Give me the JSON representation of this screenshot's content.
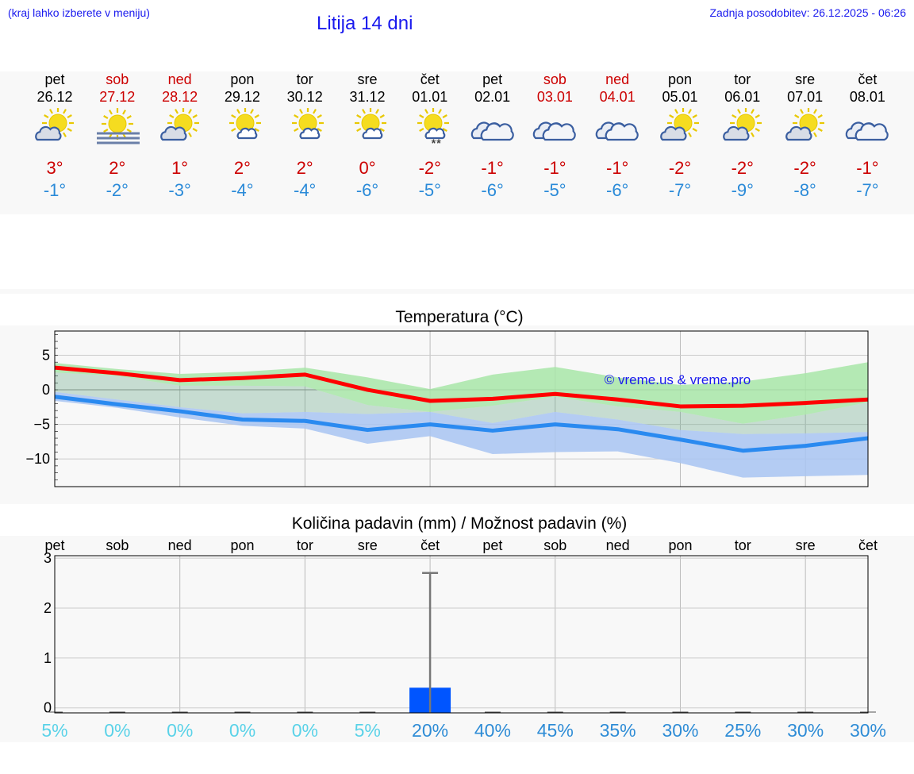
{
  "header": {
    "location_hint": "(kraj lahko izberete v meniju)",
    "title": "Litija 14 dni",
    "updated": "Zadnja posodobitev: 26.12.2025 - 06:26"
  },
  "days": [
    {
      "name": "pet",
      "date": "26.12",
      "weekend": false,
      "icon": "sun-cloud-icon",
      "max": "3°",
      "min": "-1°"
    },
    {
      "name": "sob",
      "date": "27.12",
      "weekend": true,
      "icon": "sun-fog-icon",
      "max": "2°",
      "min": "-2°"
    },
    {
      "name": "ned",
      "date": "28.12",
      "weekend": true,
      "icon": "sun-cloud-icon",
      "max": "1°",
      "min": "-3°"
    },
    {
      "name": "pon",
      "date": "29.12",
      "weekend": false,
      "icon": "sun-small-cloud-icon",
      "max": "2°",
      "min": "-4°"
    },
    {
      "name": "tor",
      "date": "30.12",
      "weekend": false,
      "icon": "sun-small-cloud-icon",
      "max": "2°",
      "min": "-4°"
    },
    {
      "name": "sre",
      "date": "31.12",
      "weekend": false,
      "icon": "sun-small-cloud-icon",
      "max": "0°",
      "min": "-6°"
    },
    {
      "name": "čet",
      "date": "01.01",
      "weekend": false,
      "icon": "sun-snow-icon",
      "max": "-2°",
      "min": "-5°"
    },
    {
      "name": "pet",
      "date": "02.01",
      "weekend": false,
      "icon": "cloud-icon",
      "max": "-1°",
      "min": "-6°"
    },
    {
      "name": "sob",
      "date": "03.01",
      "weekend": true,
      "icon": "cloud-icon",
      "max": "-1°",
      "min": "-5°"
    },
    {
      "name": "ned",
      "date": "04.01",
      "weekend": true,
      "icon": "cloud-icon",
      "max": "-1°",
      "min": "-6°"
    },
    {
      "name": "pon",
      "date": "05.01",
      "weekend": false,
      "icon": "sun-cloud-icon",
      "max": "-2°",
      "min": "-7°"
    },
    {
      "name": "tor",
      "date": "06.01",
      "weekend": false,
      "icon": "sun-cloud-icon",
      "max": "-2°",
      "min": "-9°"
    },
    {
      "name": "sre",
      "date": "07.01",
      "weekend": false,
      "icon": "sun-cloud-icon",
      "max": "-2°",
      "min": "-8°"
    },
    {
      "name": "čet",
      "date": "08.01",
      "weekend": false,
      "icon": "cloud-icon",
      "max": "-1°",
      "min": "-7°"
    }
  ],
  "snow_marker": "**",
  "chart_data": [
    {
      "type": "line",
      "title": "Temperatura (°C)",
      "x": [
        0,
        1,
        2,
        3,
        4,
        5,
        6,
        7,
        8,
        9,
        10,
        11,
        12,
        13
      ],
      "ylim": [
        -14,
        8.5
      ],
      "yticks": [
        5,
        0,
        -5,
        -10
      ],
      "ytick_labels": [
        "5",
        "0",
        "−5",
        "−10"
      ],
      "grid": true,
      "watermark": "© vreme.us & vreme.pro",
      "series": [
        {
          "name": "max",
          "color": "#ff0000",
          "values": [
            3.2,
            2.4,
            1.4,
            1.7,
            2.2,
            0,
            -1.6,
            -1.3,
            -0.6,
            -1.4,
            -2.4,
            -2.3,
            -1.9,
            -1.4
          ]
        },
        {
          "name": "min",
          "color": "#2a8af0",
          "values": [
            -1,
            -2.1,
            -3.1,
            -4.3,
            -4.5,
            -5.8,
            -5,
            -5.9,
            -5,
            -5.7,
            -7.2,
            -8.8,
            -8.1,
            -7
          ]
        },
        {
          "name": "max_range_high",
          "color": "#a8e6a8",
          "values": [
            3.9,
            3,
            2.3,
            2.6,
            3.2,
            1.8,
            0.1,
            2.2,
            3.3,
            1.8,
            0.7,
            1.2,
            2.4,
            4
          ]
        },
        {
          "name": "max_range_low",
          "color": "#a8e6a8",
          "values": [
            2.5,
            2,
            0.6,
            0.6,
            0.5,
            -2.2,
            -3.2,
            -2.3,
            -1,
            -2.4,
            -3.2,
            -4.9,
            -3.6,
            -1.8
          ]
        },
        {
          "name": "min_range_high",
          "color": "#a8c4f2",
          "values": [
            -0.3,
            -1.4,
            -2.5,
            -3.4,
            -3.2,
            -3.5,
            -3.2,
            -4.8,
            -3.2,
            -4.3,
            -5.8,
            -6.4,
            -6.3,
            -6.1
          ]
        },
        {
          "name": "min_range_low",
          "color": "#a8c4f2",
          "values": [
            -1.6,
            -2.6,
            -4,
            -5.2,
            -5.6,
            -7.8,
            -6.7,
            -9.3,
            -9,
            -8.9,
            -10.6,
            -12.7,
            -12.5,
            -12.3
          ]
        }
      ]
    },
    {
      "type": "bar",
      "title": "Količina padavin (mm) / Možnost padavin (%)",
      "categories": [
        "pet",
        "sob",
        "ned",
        "pon",
        "tor",
        "sre",
        "čet",
        "pet",
        "sob",
        "ned",
        "pon",
        "tor",
        "sre",
        "čet"
      ],
      "values": [
        0,
        0,
        0,
        0,
        0,
        0,
        0.5,
        0,
        0,
        0,
        0,
        0,
        0,
        0
      ],
      "error_high": [
        null,
        null,
        null,
        null,
        null,
        null,
        2.8,
        null,
        null,
        null,
        null,
        null,
        null,
        null
      ],
      "ylim": [
        -0.1,
        3.05
      ],
      "yticks": [
        0,
        1,
        2,
        3
      ],
      "ytick_labels": [
        "0",
        "1",
        "2",
        "3"
      ],
      "probability": [
        "5%",
        "0%",
        "0%",
        "0%",
        "0%",
        "5%",
        "20%",
        "40%",
        "45%",
        "35%",
        "30%",
        "25%",
        "30%",
        "30%"
      ],
      "probability_values": [
        5,
        0,
        0,
        0,
        0,
        5,
        20,
        40,
        45,
        35,
        30,
        25,
        30,
        30
      ],
      "bar_color": "#0055ff"
    }
  ]
}
